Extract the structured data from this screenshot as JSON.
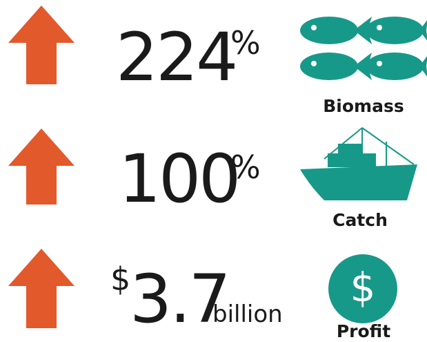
{
  "rows": [
    {
      "value": 224,
      "unit": "%",
      "label": "Biomass"
    },
    {
      "value": 100,
      "unit": "%",
      "label": "Catch"
    },
    {
      "prefix": "$",
      "value": 3.7,
      "unit": "billion",
      "label": "Profit",
      "icon": "$"
    }
  ]
}
